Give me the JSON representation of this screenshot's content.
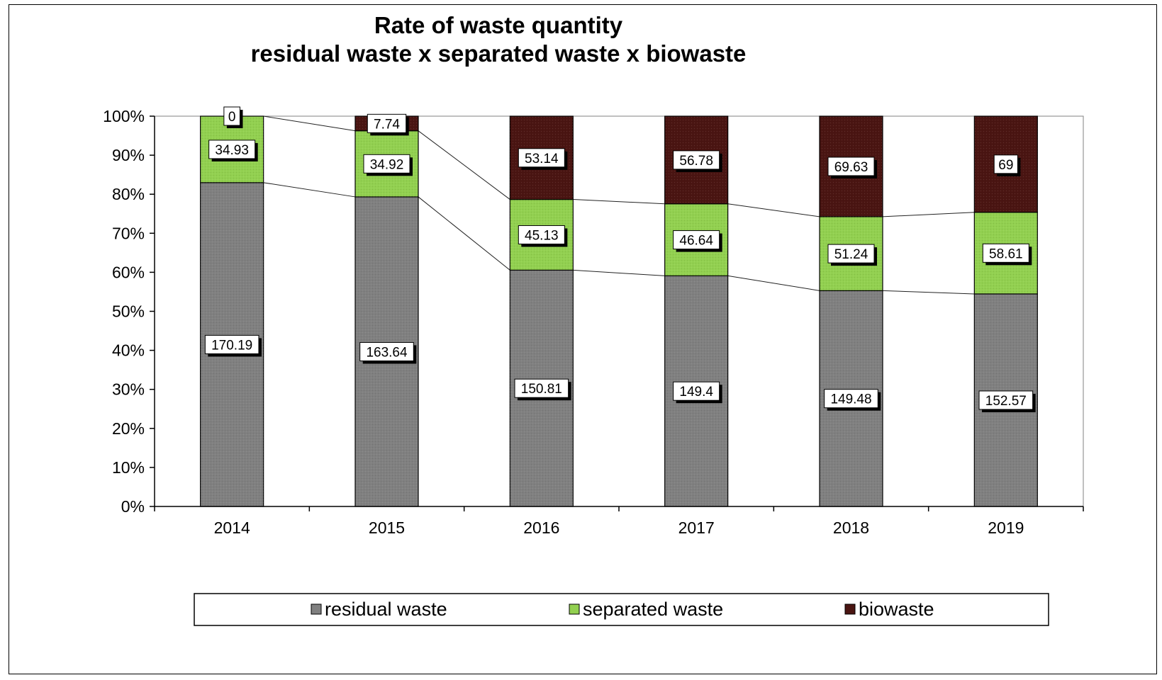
{
  "chart_data": {
    "type": "bar",
    "stacked": "percent",
    "title": "Rate of waste quantity",
    "subtitle": "residual waste x separated waste x biowaste",
    "categories": [
      "2014",
      "2015",
      "2016",
      "2017",
      "2018",
      "2019"
    ],
    "series": [
      {
        "name": "residual waste",
        "values": [
          170.19,
          163.64,
          150.81,
          149.4,
          149.48,
          152.57
        ],
        "color": "#808080"
      },
      {
        "name": "separated waste",
        "values": [
          34.93,
          34.92,
          45.13,
          46.64,
          51.24,
          58.61
        ],
        "color": "#92d050"
      },
      {
        "name": "biowaste",
        "values": [
          0,
          7.74,
          53.14,
          56.78,
          69.63,
          69
        ],
        "color": "#4a1512"
      }
    ],
    "y_ticks": [
      "0%",
      "10%",
      "20%",
      "30%",
      "40%",
      "50%",
      "60%",
      "70%",
      "80%",
      "90%",
      "100%"
    ],
    "ylim": [
      0,
      100
    ],
    "series_lines": true,
    "grid": false,
    "legend_position": "bottom"
  }
}
